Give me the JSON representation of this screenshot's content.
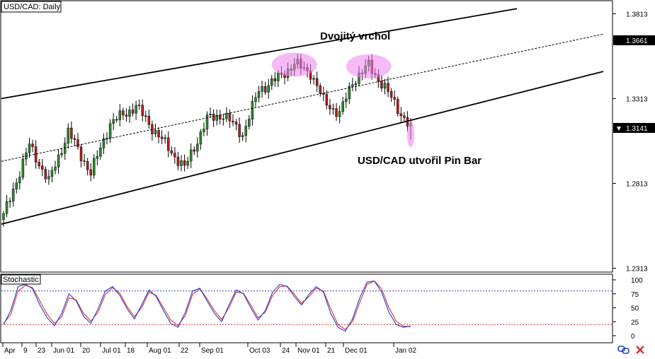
{
  "chart_data": {
    "type": "candlestick",
    "title": "USD/CAD: Daily",
    "price_axis": {
      "ticks": [
        "1.3813",
        "1.3313",
        "1.2813",
        "1.2313"
      ],
      "range": [
        1.229,
        1.389
      ],
      "highlight_top": "1.3661",
      "current": "1.3141"
    },
    "x_axis": {
      "labels": [
        "Apr",
        "9",
        "23",
        "Jun 01",
        "20",
        "Jul 01",
        "18",
        "Aug 01",
        "22",
        "Sep 01",
        "Oct 03",
        "24",
        "Nov 01",
        "21",
        "Dec 01",
        "Jan 02"
      ]
    },
    "annotations": {
      "double_top": "Dvojitý vrchol",
      "pin_bar": "USD/CAD utvořil Pin Bar"
    },
    "channel": {
      "upper_start": 1.3313,
      "upper_end": 1.3843,
      "lower_start": 1.2573,
      "lower_end": 1.3473,
      "mid_start": 1.2943,
      "mid_end": 1.3693
    },
    "key_points": [
      {
        "bar": 0,
        "price": 1.262
      },
      {
        "bar": 8,
        "price": 1.3038
      },
      {
        "bar": 14,
        "price": 1.2823
      },
      {
        "bar": 20,
        "price": 1.3117
      },
      {
        "bar": 27,
        "price": 1.2873
      },
      {
        "bar": 33,
        "price": 1.3167
      },
      {
        "bar": 41,
        "price": 1.3268
      },
      {
        "bar": 47,
        "price": 1.3116
      },
      {
        "bar": 56,
        "price": 1.2903
      },
      {
        "bar": 63,
        "price": 1.3191
      },
      {
        "bar": 68,
        "price": 1.3218
      },
      {
        "bar": 74,
        "price": 1.3102
      },
      {
        "bar": 79,
        "price": 1.3363
      },
      {
        "bar": 85,
        "price": 1.3434
      },
      {
        "bar": 90,
        "price": 1.3518
      },
      {
        "bar": 95,
        "price": 1.3466
      },
      {
        "bar": 99,
        "price": 1.3301
      },
      {
        "bar": 104,
        "price": 1.3221
      },
      {
        "bar": 108,
        "price": 1.3413
      },
      {
        "bar": 113,
        "price": 1.3508
      },
      {
        "bar": 118,
        "price": 1.3376
      },
      {
        "bar": 122,
        "price": 1.3256
      },
      {
        "bar": 126,
        "price": 1.3136
      }
    ],
    "stochastic": {
      "title": "Stochastic",
      "ticks": [
        "100",
        "75",
        "50",
        "25",
        "0"
      ],
      "overbought": 80,
      "oversold": 20,
      "main": [
        20,
        45,
        88,
        92,
        84,
        55,
        32,
        18,
        40,
        75,
        62,
        35,
        22,
        48,
        80,
        88,
        72,
        48,
        30,
        55,
        82,
        70,
        45,
        22,
        15,
        42,
        80,
        85,
        62,
        40,
        25,
        55,
        82,
        75,
        50,
        28,
        45,
        78,
        92,
        88,
        70,
        55,
        74,
        88,
        78,
        40,
        15,
        8,
        30,
        68,
        96,
        98,
        78,
        42,
        20,
        15,
        17
      ],
      "signal": [
        22,
        38,
        80,
        90,
        86,
        62,
        38,
        22,
        34,
        68,
        64,
        40,
        26,
        42,
        74,
        86,
        76,
        52,
        34,
        50,
        78,
        72,
        50,
        28,
        18,
        36,
        74,
        84,
        66,
        45,
        29,
        50,
        78,
        76,
        55,
        32,
        42,
        72,
        88,
        89,
        74,
        58,
        70,
        85,
        80,
        48,
        20,
        11,
        25,
        60,
        92,
        98,
        84,
        50,
        26,
        17,
        16
      ]
    }
  },
  "colors": {
    "bull": "#2e8b2e",
    "bear": "#b22222",
    "channel": "#000000",
    "stoch_main": "#1f3fd0",
    "stoch_signal": "#e03030",
    "overbought_line": "#4040c0",
    "oversold_line": "#e03030",
    "highlight": "#ee82ee",
    "current_price_bg": "#000000"
  },
  "icons": [
    "link-icon",
    "close-icon"
  ]
}
